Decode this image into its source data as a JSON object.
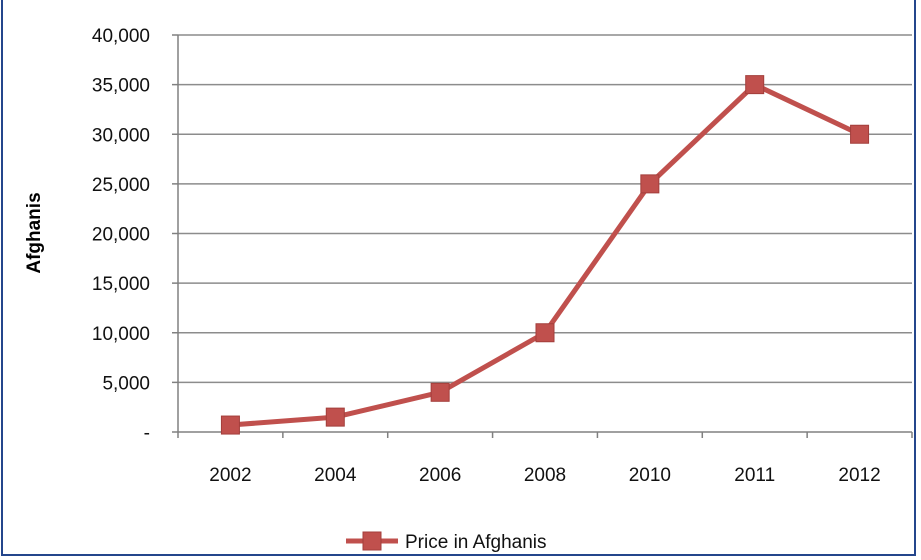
{
  "chart_data": {
    "type": "line",
    "title": "",
    "xlabel": "",
    "ylabel": "Afghanis",
    "categories": [
      "2002",
      "2004",
      "2006",
      "2008",
      "2010",
      "2011",
      "2012"
    ],
    "series": [
      {
        "name": "Price in Afghanis",
        "values": [
          700,
          1500,
          4000,
          10000,
          25000,
          35000,
          30000
        ]
      }
    ],
    "ylim": [
      0,
      40000
    ],
    "yticks": [
      0,
      5000,
      10000,
      15000,
      20000,
      25000,
      30000,
      35000,
      40000
    ],
    "ytick_labels": [
      "-",
      "5,000",
      "10,000",
      "15,000",
      "20,000",
      "25,000",
      "30,000",
      "35,000",
      "40,000"
    ],
    "grid": "horizontal",
    "legend_position": "bottom",
    "series_color": "#c0504d",
    "marker": "square"
  }
}
